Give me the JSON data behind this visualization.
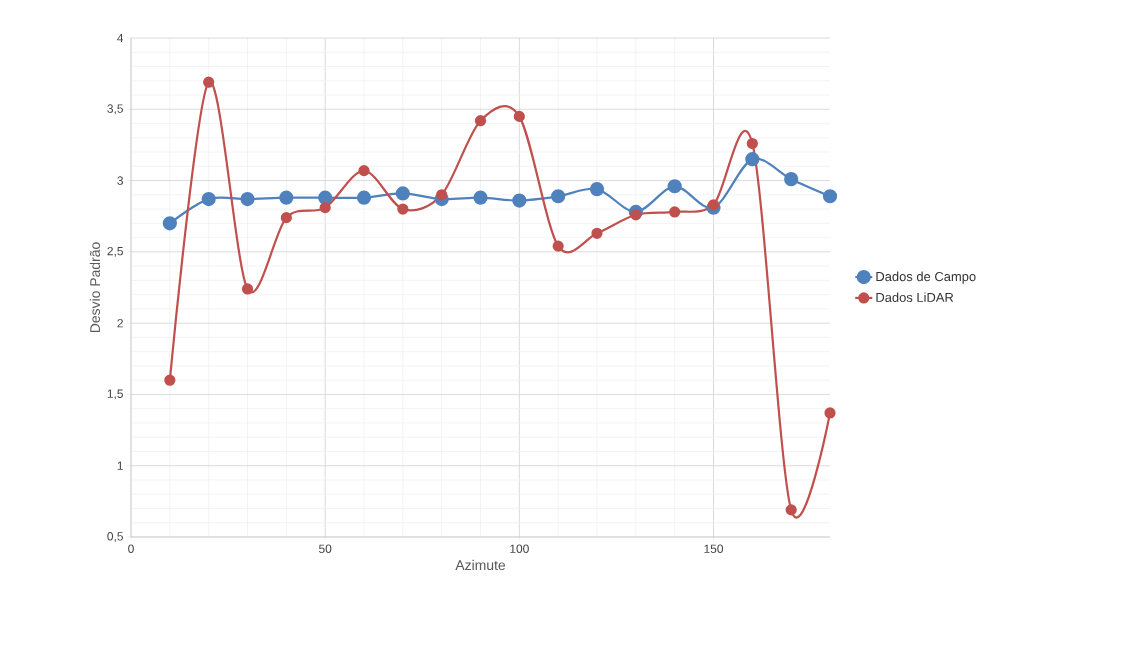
{
  "chart_data": {
    "type": "line",
    "xlabel": "Azimute",
    "ylabel": "Desvio Padrão",
    "x": [
      10,
      20,
      30,
      40,
      50,
      60,
      70,
      80,
      90,
      100,
      110,
      120,
      130,
      140,
      150,
      160,
      170,
      180
    ],
    "series": [
      {
        "name": "Dados de Campo",
        "color": "#4f81bd",
        "values": [
          2.7,
          2.87,
          2.87,
          2.88,
          2.88,
          2.88,
          2.91,
          2.87,
          2.88,
          2.86,
          2.89,
          2.94,
          2.78,
          2.96,
          2.81,
          3.15,
          3.01,
          2.89
        ]
      },
      {
        "name": "Dados LiDAR",
        "color": "#c0504d",
        "values": [
          1.6,
          3.69,
          2.24,
          2.74,
          2.81,
          3.07,
          2.8,
          2.9,
          3.42,
          3.45,
          2.54,
          2.63,
          2.76,
          2.78,
          2.83,
          3.26,
          0.69,
          1.37
        ]
      }
    ],
    "xlim": [
      0,
      180
    ],
    "ylim": [
      0.5,
      4
    ],
    "xticks": [
      0,
      50,
      100,
      150
    ],
    "yticks": [
      {
        "value": 0.5,
        "label": "0,5"
      },
      1,
      {
        "value": 1.5,
        "label": "1,5"
      },
      2,
      {
        "value": 2.5,
        "label": "2,5"
      },
      3,
      {
        "value": 3.5,
        "label": "3,5"
      },
      4
    ],
    "grid": true,
    "legend": "right",
    "marker": "circle",
    "line_style": "solid"
  }
}
